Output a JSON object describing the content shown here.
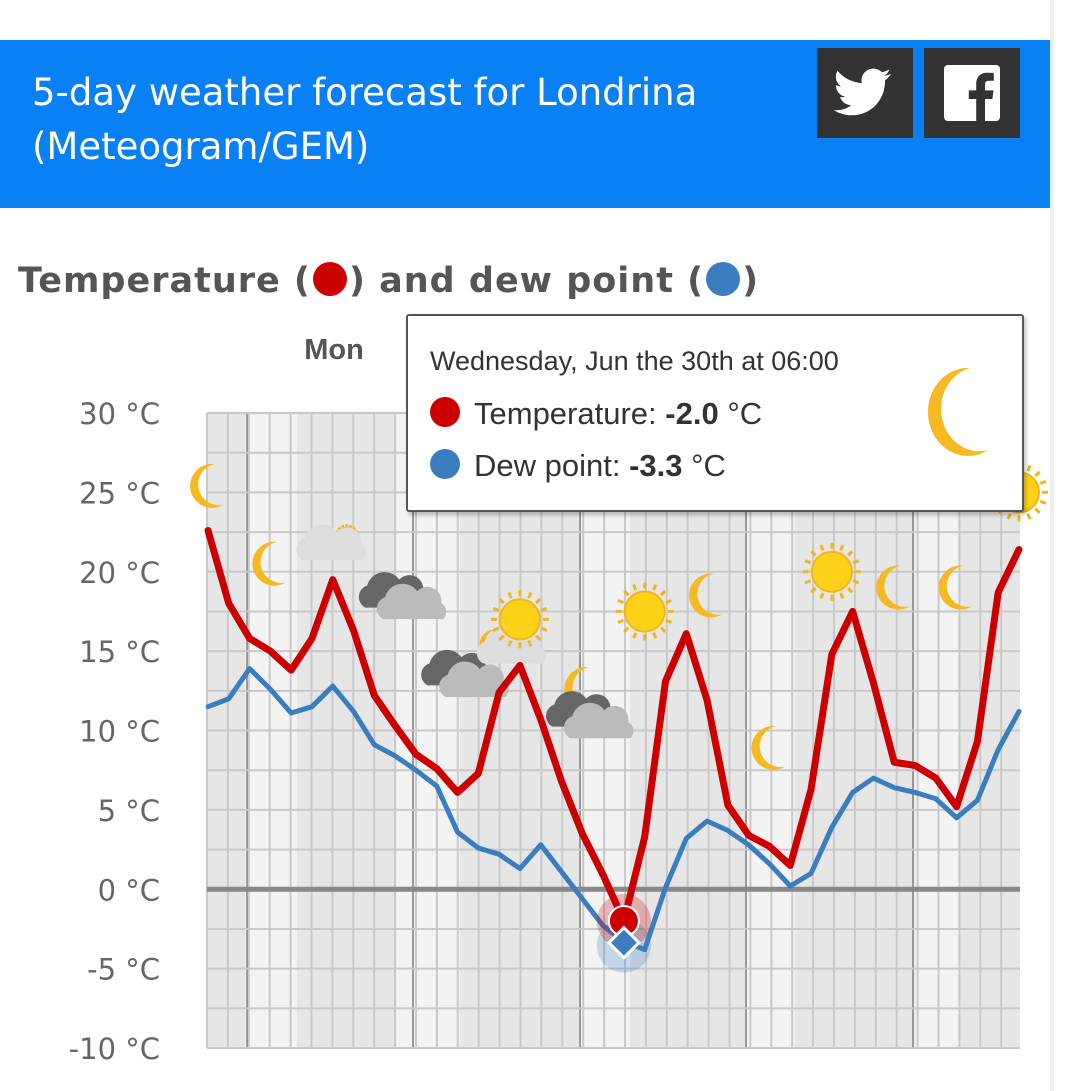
{
  "header": {
    "title": "5-day weather forecast for Londrina (Meteogram/GEM)",
    "background": "#0a80f5",
    "social": [
      {
        "name": "twitter",
        "icon": "twitter-icon"
      },
      {
        "name": "facebook",
        "icon": "facebook-icon"
      }
    ]
  },
  "section": {
    "title_part1": "Temperature (",
    "title_part2": ") and dew point (",
    "title_part3": ")"
  },
  "tooltip": {
    "heading": "Wednesday, Jun the 30th at 06:00",
    "temp_label": "Temperature:",
    "temp_value": "-2.0",
    "dew_label": "Dew point:",
    "dew_value": "-3.3",
    "unit": "°C",
    "icon": "moon-icon"
  },
  "colors": {
    "temperature": "#cc0000",
    "dew_point": "#3a7ebf",
    "moon": "#f5b921",
    "sun": "#ffd21a",
    "cloud_dark": "#666666",
    "cloud_light": "#dddddd"
  },
  "chart_data": {
    "type": "line",
    "title": "Temperature and dew point",
    "day_labels": [
      "Mon"
    ],
    "y_tick_labels": [
      "30 °C",
      "25 °C",
      "20 °C",
      "15 °C",
      "10 °C",
      "5 °C",
      "0 °C",
      "-5 °C",
      "-10 °C"
    ],
    "y_ticks": [
      30,
      25,
      20,
      15,
      10,
      5,
      0,
      -5,
      -10
    ],
    "ylim": [
      -10,
      30
    ],
    "x_count": 40,
    "grid": true,
    "series": [
      {
        "name": "Temperature",
        "color": "#cc0000",
        "values": [
          22.6,
          18.0,
          15.8,
          15.0,
          13.8,
          15.8,
          19.5,
          16.3,
          12.2,
          10.3,
          8.5,
          7.6,
          6.1,
          7.3,
          12.4,
          14.1,
          10.7,
          6.8,
          3.5,
          0.9,
          -2.0,
          3.3,
          13.1,
          16.1,
          11.9,
          5.3,
          3.4,
          2.7,
          1.5,
          6.3,
          14.8,
          17.5,
          13.0,
          8.0,
          7.8,
          7.0,
          5.2,
          9.3,
          18.7,
          21.4
        ]
      },
      {
        "name": "Dew point",
        "color": "#3a7ebf",
        "values": [
          11.5,
          12.0,
          13.9,
          12.6,
          11.1,
          11.5,
          12.8,
          11.2,
          9.1,
          8.4,
          7.5,
          6.5,
          3.6,
          2.6,
          2.2,
          1.3,
          2.8,
          1.1,
          -0.6,
          -2.3,
          -3.3,
          -3.8,
          0.1,
          3.2,
          4.3,
          3.7,
          2.8,
          1.6,
          0.2,
          1.0,
          3.9,
          6.1,
          7.0,
          6.4,
          6.1,
          5.7,
          4.5,
          5.6,
          8.8,
          11.2
        ]
      }
    ],
    "highlight_index": 20,
    "weather_icons": [
      {
        "i": 0,
        "type": "moon",
        "value": 25.4
      },
      {
        "i": 3,
        "type": "moon",
        "value": 20.5
      },
      {
        "i": 6,
        "type": "partly-cloudy",
        "value": 21.5
      },
      {
        "i": 9,
        "type": "cloudy-dark",
        "value": 18.5
      },
      {
        "i": 12,
        "type": "cloudy-dark",
        "value": 13.6
      },
      {
        "i": 14,
        "type": "cloud-moon",
        "value": 15.2
      },
      {
        "i": 15,
        "type": "sun",
        "value": 17.0
      },
      {
        "i": 18,
        "type": "moon",
        "value": 12.6
      },
      {
        "i": 18,
        "type": "cloudy-dark",
        "value": 11.0
      },
      {
        "i": 21,
        "type": "sun",
        "value": 17.5
      },
      {
        "i": 24,
        "type": "moon",
        "value": 18.5
      },
      {
        "i": 27,
        "type": "moon",
        "value": 8.9
      },
      {
        "i": 30,
        "type": "sun",
        "value": 20.0
      },
      {
        "i": 33,
        "type": "moon",
        "value": 19.0
      },
      {
        "i": 36,
        "type": "moon",
        "value": 19.0
      },
      {
        "i": 39,
        "type": "sun",
        "value": 25.0
      }
    ]
  }
}
